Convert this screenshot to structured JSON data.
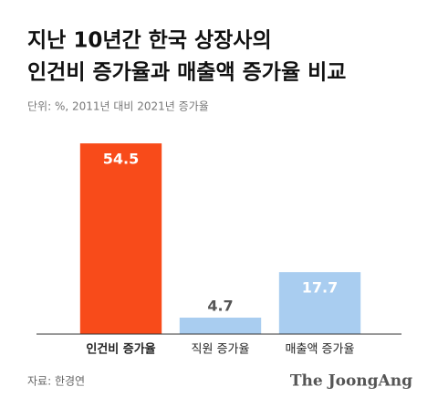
{
  "chart_data": {
    "type": "bar",
    "title": [
      "지난 10년간 한국 상장사의",
      "인건비 증가율과 매출액 증가율 비교"
    ],
    "subtitle": "단위: %, 2011년 대비 2021년 증가율",
    "categories": [
      "인건비 증가율",
      "직원 증가율",
      "매출액 증가율"
    ],
    "values": [
      54.5,
      4.7,
      17.7
    ],
    "colors": [
      "#f84b1a",
      "#a9cdf0",
      "#a9cdf0"
    ],
    "ylim": [
      0,
      60
    ],
    "source": "자료: 한경연",
    "brand": "The JoongAng"
  }
}
